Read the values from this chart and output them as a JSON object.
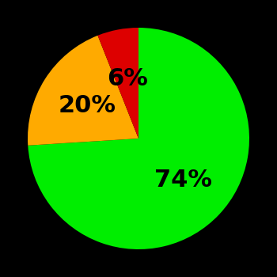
{
  "slices": [
    74,
    20,
    6
  ],
  "colors": [
    "#00ee00",
    "#ffaa00",
    "#dd0000"
  ],
  "labels": [
    "74%",
    "20%",
    "6%"
  ],
  "label_radii": [
    0.55,
    0.55,
    0.55
  ],
  "background_color": "#000000",
  "startangle": 90,
  "counterclock": false,
  "figsize": [
    3.5,
    3.5
  ],
  "dpi": 100,
  "fontsize": 22
}
